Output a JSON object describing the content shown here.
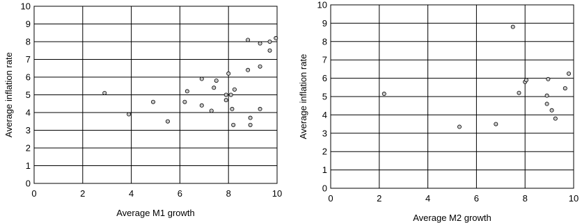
{
  "chart_data": [
    {
      "type": "scatter",
      "xlabel": "Average M1 growth",
      "ylabel": "Average inflation rate",
      "xlim": [
        0,
        10
      ],
      "ylim": [
        0,
        10
      ],
      "xticks": [
        "0",
        "2",
        "4",
        "6",
        "8",
        "10"
      ],
      "yticks": [
        "0",
        "1",
        "2",
        "3",
        "4",
        "5",
        "6",
        "7",
        "8",
        "9",
        "10"
      ],
      "grid": true,
      "points": [
        {
          "x": 2.9,
          "y": 5.1
        },
        {
          "x": 3.9,
          "y": 3.9
        },
        {
          "x": 4.9,
          "y": 4.6
        },
        {
          "x": 5.5,
          "y": 3.5
        },
        {
          "x": 6.2,
          "y": 4.6
        },
        {
          "x": 6.3,
          "y": 5.2
        },
        {
          "x": 6.9,
          "y": 4.4
        },
        {
          "x": 6.9,
          "y": 5.9
        },
        {
          "x": 7.3,
          "y": 4.1
        },
        {
          "x": 7.4,
          "y": 5.4
        },
        {
          "x": 7.5,
          "y": 5.8
        },
        {
          "x": 7.9,
          "y": 4.7
        },
        {
          "x": 7.9,
          "y": 5.0
        },
        {
          "x": 8.0,
          "y": 6.2
        },
        {
          "x": 8.1,
          "y": 5.0
        },
        {
          "x": 8.15,
          "y": 4.2
        },
        {
          "x": 8.2,
          "y": 3.3
        },
        {
          "x": 8.25,
          "y": 5.3
        },
        {
          "x": 8.8,
          "y": 8.1
        },
        {
          "x": 8.8,
          "y": 6.4
        },
        {
          "x": 8.9,
          "y": 3.7
        },
        {
          "x": 8.9,
          "y": 3.3
        },
        {
          "x": 9.3,
          "y": 7.9
        },
        {
          "x": 9.3,
          "y": 6.6
        },
        {
          "x": 9.3,
          "y": 4.2
        },
        {
          "x": 9.7,
          "y": 8.0
        },
        {
          "x": 9.7,
          "y": 7.5
        },
        {
          "x": 9.95,
          "y": 8.2
        }
      ]
    },
    {
      "type": "scatter",
      "xlabel": "Average M2 growth",
      "ylabel": "Average inflation rate",
      "xlim": [
        0,
        10
      ],
      "ylim": [
        0,
        10
      ],
      "xticks": [
        "0",
        "2",
        "4",
        "6",
        "8",
        "10"
      ],
      "yticks": [
        "0",
        "1",
        "2",
        "3",
        "4",
        "5",
        "6",
        "7",
        "8",
        "9",
        "10"
      ],
      "grid": true,
      "points": [
        {
          "x": 2.2,
          "y": 5.15
        },
        {
          "x": 5.3,
          "y": 3.35
        },
        {
          "x": 6.8,
          "y": 3.5
        },
        {
          "x": 7.5,
          "y": 8.8
        },
        {
          "x": 7.75,
          "y": 5.2
        },
        {
          "x": 8.0,
          "y": 5.8
        },
        {
          "x": 8.05,
          "y": 5.9
        },
        {
          "x": 8.9,
          "y": 4.6
        },
        {
          "x": 8.9,
          "y": 5.05
        },
        {
          "x": 8.95,
          "y": 5.95
        },
        {
          "x": 9.1,
          "y": 4.25
        },
        {
          "x": 9.25,
          "y": 3.8
        },
        {
          "x": 9.65,
          "y": 5.45
        },
        {
          "x": 9.8,
          "y": 6.25
        }
      ]
    }
  ]
}
